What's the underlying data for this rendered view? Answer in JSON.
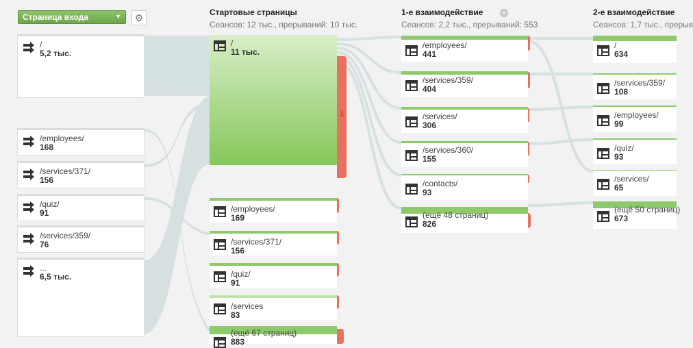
{
  "header": {
    "dimension_select": "Страница входа",
    "columns": [
      {
        "title": "Стартовые страницы",
        "subtitle": "Сеансов: 12 тыс., прерываний: 10 тыс."
      },
      {
        "title": "1-е взаимодействие",
        "subtitle": "Сеансов: 2,2 тыс., прерываний: 553"
      },
      {
        "title": "2-е взаимодействие",
        "subtitle": "Сеансов: 1,7 тыс., прерыв"
      }
    ]
  },
  "sources": [
    {
      "label": "/",
      "value": "5,2 тыс."
    },
    {
      "label": "/employees/",
      "value": "168"
    },
    {
      "label": "/services/371/",
      "value": "156"
    },
    {
      "label": "/quiz/",
      "value": "91"
    },
    {
      "label": "/services/359/",
      "value": "76"
    },
    {
      "label": "...",
      "value": "6,5 тыс."
    }
  ],
  "start_pages": [
    {
      "label": "/",
      "value": "11 тыс."
    },
    {
      "label": "/employees/",
      "value": "169"
    },
    {
      "label": "/services/371/",
      "value": "156"
    },
    {
      "label": "/quiz/",
      "value": "91"
    },
    {
      "label": "/services",
      "value": "83"
    },
    {
      "label": "(ещё 67 страниц)",
      "value": "883"
    }
  ],
  "interaction1": [
    {
      "label": "/employees/",
      "value": "441"
    },
    {
      "label": "/services/359/",
      "value": "404"
    },
    {
      "label": "/services/",
      "value": "306"
    },
    {
      "label": "/services/360/",
      "value": "155"
    },
    {
      "label": "/contacts/",
      "value": "93"
    },
    {
      "label": "(ещё 48 страниц)",
      "value": "826"
    }
  ],
  "interaction2": [
    {
      "label": "/",
      "value": "634"
    },
    {
      "label": "/services/359/",
      "value": "108"
    },
    {
      "label": "/employees/",
      "value": "99"
    },
    {
      "label": "/quiz/",
      "value": "93"
    },
    {
      "label": "/services/",
      "value": "65"
    },
    {
      "label": "(ещё 50 страниц)",
      "value": "673"
    }
  ],
  "colors": {
    "node_green": "#8ec96b",
    "drop_red": "#e8705e",
    "flow": "#d3dfe0"
  }
}
